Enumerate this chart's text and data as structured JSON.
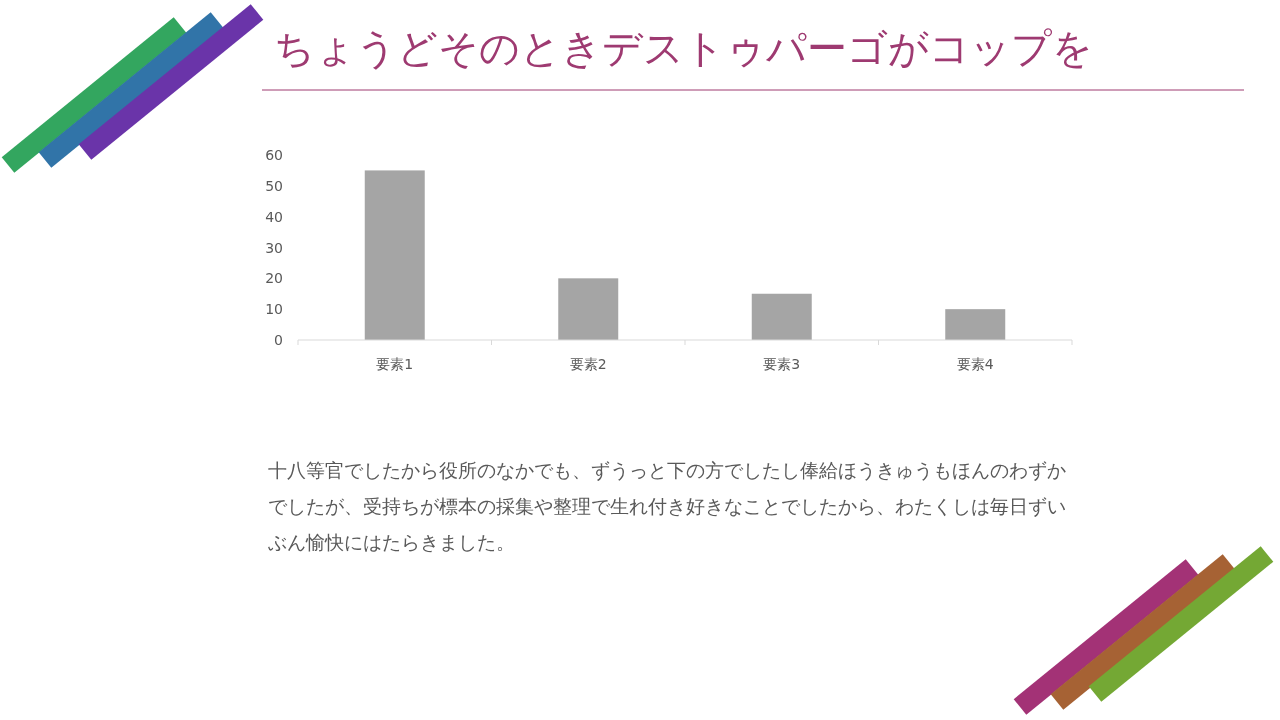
{
  "chart_data": {
    "type": "bar",
    "title": "ちょうどそのときデストゥパーゴがコップを",
    "categories": [
      "要素1",
      "要素2",
      "要素3",
      "要素4"
    ],
    "values": [
      55,
      20,
      15,
      10
    ],
    "color": "#a5a5a5",
    "ylim": [
      0,
      60
    ],
    "yticks": [
      0,
      10,
      20,
      30,
      40,
      50,
      60
    ],
    "annotations": [
      "十八等官でしたから役所のなかでも、ずうっと下の方でしたし俸給ほうきゅうもほんのわずかでしたが、受持ちが標本の採集や整理で生れ付き好きなことでしたから、わたくしは毎日ずいぶん愉快にはたらきました。"
    ]
  }
}
